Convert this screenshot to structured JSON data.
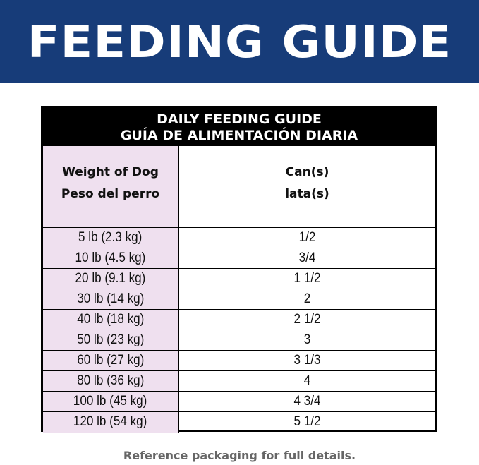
{
  "banner": {
    "title": "FEEDING GUIDE"
  },
  "table": {
    "title_en": "DAILY FEEDING GUIDE",
    "title_es": "GUÍA DE ALIMENTACIÓN DIARIA",
    "col1": {
      "en": "Weight of Dog",
      "es": "Peso del perro"
    },
    "col2": {
      "en": "Can(s)",
      "es": "lata(s)"
    },
    "rows": [
      {
        "weight": "5 lb (2.3 kg)",
        "cans": "1/2"
      },
      {
        "weight": "10 lb (4.5 kg)",
        "cans": "3/4"
      },
      {
        "weight": "20 lb (9.1 kg)",
        "cans": "1 1/2"
      },
      {
        "weight": "30 lb (14 kg)",
        "cans": "2"
      },
      {
        "weight": "40 lb (18 kg)",
        "cans": "2 1/2"
      },
      {
        "weight": "50 lb (23 kg)",
        "cans": "3"
      },
      {
        "weight": "60 lb (27 kg)",
        "cans": "3 1/3"
      },
      {
        "weight": "80 lb (36 kg)",
        "cans": "4"
      },
      {
        "weight": "100 lb (45 kg)",
        "cans": "4 3/4"
      },
      {
        "weight": "120 lb (54 kg)",
        "cans": "5 1/2"
      }
    ]
  },
  "footer": "Reference packaging for full details.",
  "colors": {
    "banner": "#173c79",
    "weight_column": "#efe0ef"
  }
}
